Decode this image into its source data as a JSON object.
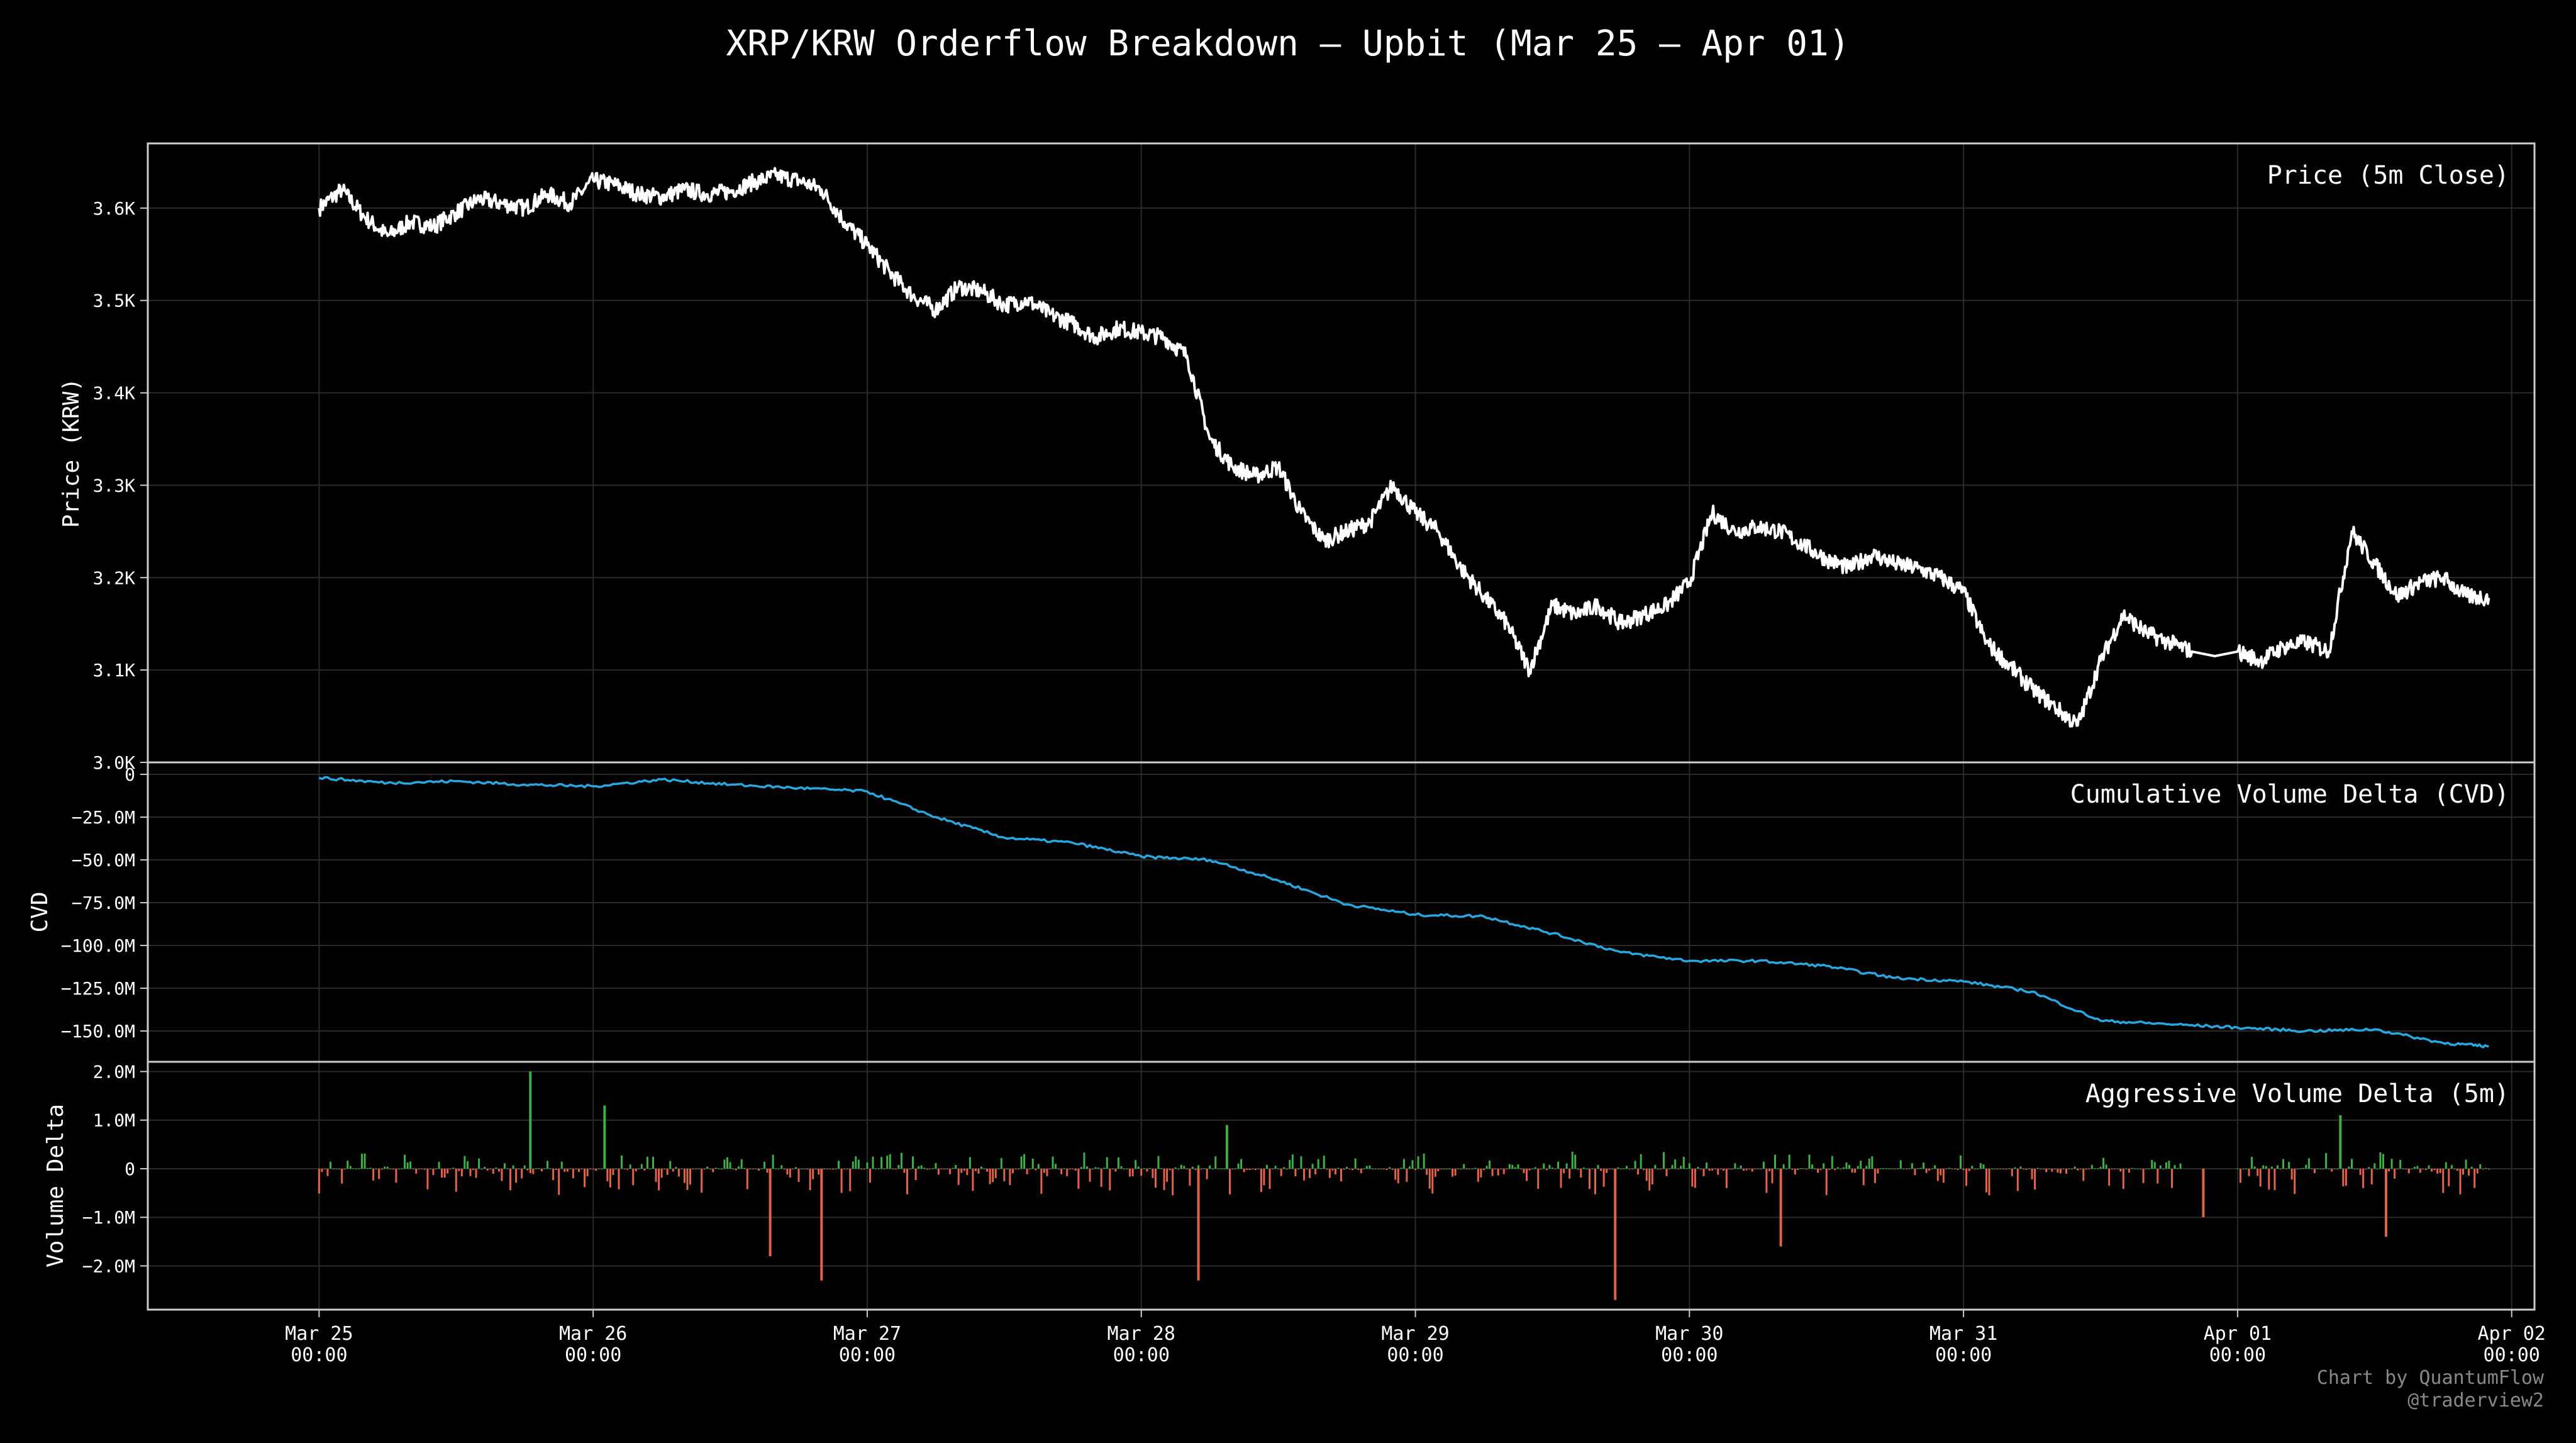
{
  "title": "XRP/KRW Orderflow Breakdown — Upbit (Mar 25 – Apr 01)",
  "credit": [
    "Chart by QuantumFlow",
    "@traderview2"
  ],
  "colors": {
    "background": "#000000",
    "price_line": "#ffffff",
    "cvd_line": "#29a8e0",
    "delta_positive": "#3cb043",
    "delta_negative": "#e0634a",
    "grid": "#2a2a2a",
    "axes": "#cccccc",
    "text": "#ffffff",
    "credit_text": "#888888"
  },
  "x_axis": {
    "tick_labels": [
      [
        "Mar 25",
        "00:00"
      ],
      [
        "Mar 26",
        "00:00"
      ],
      [
        "Mar 27",
        "00:00"
      ],
      [
        "Mar 28",
        "00:00"
      ],
      [
        "Mar 29",
        "00:00"
      ],
      [
        "Mar 30",
        "00:00"
      ],
      [
        "Mar 31",
        "00:00"
      ],
      [
        "Apr 01",
        "00:00"
      ],
      [
        "Apr 02",
        "00:00"
      ]
    ],
    "range": [
      "2025-03-24 09:00",
      "2025-04-02 02:00"
    ]
  },
  "chart_data": [
    {
      "type": "line",
      "title": "Price (5m Close)",
      "ylabel": "Price (KRW)",
      "ylim": [
        3000,
        3670
      ],
      "y_tick_labels": [
        "3.0K",
        "3.1K",
        "3.2K",
        "3.3K",
        "3.4K",
        "3.5K",
        "3.6K"
      ],
      "y_tick_values": [
        3000,
        3100,
        3200,
        3300,
        3400,
        3500,
        3600
      ],
      "grid": true,
      "x_dates": [
        "2025-03-25 00:00",
        "2025-03-25 02:00",
        "2025-03-25 04:00",
        "2025-03-25 06:00",
        "2025-03-25 08:00",
        "2025-03-25 10:00",
        "2025-03-25 12:00",
        "2025-03-25 14:00",
        "2025-03-25 16:00",
        "2025-03-25 18:00",
        "2025-03-25 20:00",
        "2025-03-25 22:00",
        "2025-03-26 00:00",
        "2025-03-26 02:00",
        "2025-03-26 04:00",
        "2025-03-26 06:00",
        "2025-03-26 08:00",
        "2025-03-26 10:00",
        "2025-03-26 12:00",
        "2025-03-26 14:00",
        "2025-03-26 16:00",
        "2025-03-26 18:00",
        "2025-03-26 20:00",
        "2025-03-26 22:00",
        "2025-03-27 00:00",
        "2025-03-27 02:00",
        "2025-03-27 04:00",
        "2025-03-27 06:00",
        "2025-03-27 08:00",
        "2025-03-27 10:00",
        "2025-03-27 12:00",
        "2025-03-27 14:00",
        "2025-03-27 16:00",
        "2025-03-27 18:00",
        "2025-03-27 20:00",
        "2025-03-27 22:00",
        "2025-03-28 00:00",
        "2025-03-28 02:00",
        "2025-03-28 04:00",
        "2025-03-28 06:00",
        "2025-03-28 08:00",
        "2025-03-28 10:00",
        "2025-03-28 12:00",
        "2025-03-28 14:00",
        "2025-03-28 16:00",
        "2025-03-28 18:00",
        "2025-03-28 20:00",
        "2025-03-28 22:00",
        "2025-03-29 00:00",
        "2025-03-29 02:00",
        "2025-03-29 04:00",
        "2025-03-29 06:00",
        "2025-03-29 08:00",
        "2025-03-29 10:00",
        "2025-03-29 12:00",
        "2025-03-29 14:00",
        "2025-03-29 16:00",
        "2025-03-29 18:00",
        "2025-03-29 20:00",
        "2025-03-29 22:00",
        "2025-03-30 00:00",
        "2025-03-30 02:00",
        "2025-03-30 04:00",
        "2025-03-30 06:00",
        "2025-03-30 08:00",
        "2025-03-30 10:00",
        "2025-03-30 12:00",
        "2025-03-30 14:00",
        "2025-03-30 16:00",
        "2025-03-30 18:00",
        "2025-03-30 20:00",
        "2025-03-30 22:00",
        "2025-03-31 00:00",
        "2025-03-31 02:00",
        "2025-03-31 04:00",
        "2025-03-31 06:00",
        "2025-03-31 08:00",
        "2025-03-31 10:00",
        "2025-03-31 12:00",
        "2025-03-31 14:00",
        "2025-03-31 16:00",
        "2025-03-31 18:00",
        "2025-03-31 20:00",
        "2025-03-31 22:00",
        "2025-04-01 00:00",
        "2025-04-01 02:00",
        "2025-04-01 04:00",
        "2025-04-01 06:00",
        "2025-04-01 08:00",
        "2025-04-01 10:00",
        "2025-04-01 12:00",
        "2025-04-01 14:00",
        "2025-04-01 16:00",
        "2025-04-01 18:00",
        "2025-04-01 20:00",
        "2025-04-01 22:00"
      ],
      "values": [
        3600,
        3620,
        3590,
        3570,
        3585,
        3580,
        3595,
        3610,
        3605,
        3600,
        3615,
        3605,
        3630,
        3625,
        3615,
        3612,
        3620,
        3615,
        3618,
        3628,
        3635,
        3630,
        3620,
        3585,
        3560,
        3530,
        3505,
        3490,
        3515,
        3510,
        3495,
        3500,
        3485,
        3475,
        3460,
        3470,
        3465,
        3460,
        3440,
        3350,
        3320,
        3310,
        3320,
        3270,
        3240,
        3250,
        3260,
        3300,
        3270,
        3250,
        3210,
        3180,
        3150,
        3100,
        3170,
        3160,
        3170,
        3150,
        3160,
        3170,
        3195,
        3270,
        3250,
        3255,
        3250,
        3235,
        3220,
        3210,
        3225,
        3215,
        3210,
        3200,
        3185,
        3130,
        3105,
        3080,
        3060,
        3040,
        3110,
        3160,
        3140,
        3130,
        3120,
        3115,
        3120,
        3110,
        3125,
        3130,
        3120,
        3250,
        3215,
        3180,
        3195,
        3200,
        3180,
        3178
      ],
      "gap": {
        "from": "2025-03-31 19:00",
        "to": "2025-04-01 00:00"
      }
    },
    {
      "type": "line",
      "title": "Cumulative Volume Delta (CVD)",
      "ylabel": "CVD",
      "ylim": [
        -168,
        7
      ],
      "y_tick_labels": [
        "−150.0M",
        "−125.0M",
        "−100.0M",
        "−75.0M",
        "−50.0M",
        "−25.0M",
        "0"
      ],
      "y_tick_values": [
        -150,
        -125,
        -100,
        -75,
        -50,
        -25,
        0
      ],
      "unit": "M",
      "grid": true,
      "x_dates": [
        "2025-03-25 00:00",
        "2025-03-25 06:00",
        "2025-03-25 12:00",
        "2025-03-25 18:00",
        "2025-03-26 00:00",
        "2025-03-26 06:00",
        "2025-03-26 12:00",
        "2025-03-26 18:00",
        "2025-03-27 00:00",
        "2025-03-27 06:00",
        "2025-03-27 12:00",
        "2025-03-27 18:00",
        "2025-03-28 00:00",
        "2025-03-28 06:00",
        "2025-03-28 12:00",
        "2025-03-28 18:00",
        "2025-03-29 00:00",
        "2025-03-29 06:00",
        "2025-03-29 12:00",
        "2025-03-29 18:00",
        "2025-03-30 00:00",
        "2025-03-30 06:00",
        "2025-03-30 12:00",
        "2025-03-30 18:00",
        "2025-03-31 00:00",
        "2025-03-31 06:00",
        "2025-03-31 12:00",
        "2025-03-31 18:00",
        "2025-04-01 00:00",
        "2025-04-01 06:00",
        "2025-04-01 12:00",
        "2025-04-01 18:00",
        "2025-04-01 22:00"
      ],
      "values": [
        -2,
        -5,
        -4,
        -6,
        -7,
        -3,
        -6,
        -8,
        -10,
        -25,
        -37,
        -40,
        -48,
        -50,
        -62,
        -76,
        -82,
        -83,
        -93,
        -104,
        -109,
        -109,
        -112,
        -119,
        -121,
        -127,
        -144,
        -146,
        -148,
        -150,
        -149,
        -157,
        -159
      ]
    },
    {
      "type": "bar",
      "title": "Aggressive Volume Delta (5m)",
      "ylabel": "Volume Delta",
      "ylim": [
        -2.9,
        2.2
      ],
      "y_tick_labels": [
        "−2.0M",
        "−1.0M",
        "0",
        "1.0M",
        "2.0M"
      ],
      "y_tick_values": [
        -2,
        -1,
        0,
        1,
        2
      ],
      "unit": "M",
      "grid": true,
      "series": [
        {
          "color_key": "delta_positive",
          "sign": "positive"
        },
        {
          "color_key": "delta_negative",
          "sign": "negative"
        }
      ],
      "notable_spikes": [
        {
          "x": "2025-03-25 18:30",
          "value": 2.0
        },
        {
          "x": "2025-03-26 01:00",
          "value": 1.3
        },
        {
          "x": "2025-03-26 15:30",
          "value": -1.8
        },
        {
          "x": "2025-03-26 20:00",
          "value": -2.3
        },
        {
          "x": "2025-03-28 05:00",
          "value": -2.3
        },
        {
          "x": "2025-03-28 07:30",
          "value": 0.9
        },
        {
          "x": "2025-03-29 17:30",
          "value": -2.7
        },
        {
          "x": "2025-03-30 08:00",
          "value": -1.6
        },
        {
          "x": "2025-03-31 21:00",
          "value": -1.0
        },
        {
          "x": "2025-04-01 09:00",
          "value": 1.1
        },
        {
          "x": "2025-04-01 13:00",
          "value": -1.4
        }
      ],
      "gap": {
        "from": "2025-03-31 19:00",
        "to": "2025-04-01 00:00"
      }
    }
  ]
}
